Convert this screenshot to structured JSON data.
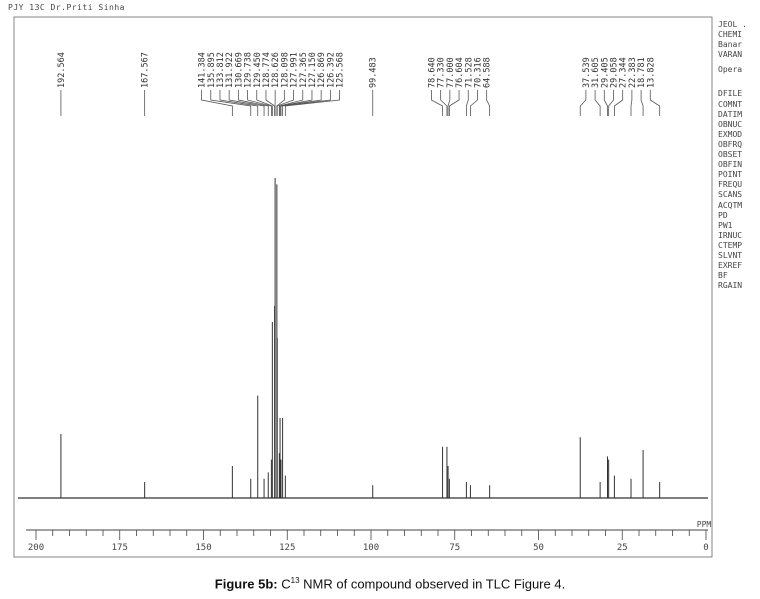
{
  "header": {
    "label": "PJY 13C Dr.Priti Sinha"
  },
  "params_top": [
    "JEOL .",
    "CHEMI",
    "Banar",
    "VARAN"
  ],
  "params_operator": "Opera",
  "params": [
    "DFILE",
    "COMNT",
    "DATIM",
    "OBNUC",
    "EXMOD",
    "OBFRQ",
    "OBSET",
    "OBFIN",
    "POINT",
    "FREQU",
    "SCANS",
    "ACQTM",
    "PD",
    "PW1",
    "IRNUC",
    "CTEMP",
    "SLVNT",
    "EXREF",
    "BF",
    "RGAIN"
  ],
  "caption": {
    "label": "Figure 5b:",
    "c": " C",
    "sup": "13",
    "text": " NMR of compound observed in TLC Figure 4."
  },
  "chart_data": {
    "type": "line",
    "title": "",
    "xlabel": "PPM",
    "xlim": [
      200,
      0
    ],
    "xticks": [
      200,
      175,
      150,
      125,
      100,
      75,
      50,
      25,
      0
    ],
    "peak_labels": [
      192.564,
      167.567,
      141.384,
      135.895,
      133.812,
      131.922,
      130.669,
      129.738,
      129.45,
      128.774,
      128.626,
      128.098,
      127.991,
      127.365,
      127.15,
      126.869,
      126.392,
      125.568,
      99.483,
      78.64,
      77.33,
      77.0,
      76.604,
      71.528,
      70.316,
      64.588,
      37.539,
      31.605,
      29.405,
      29.058,
      27.344,
      22.383,
      18.781,
      13.828
    ],
    "peaks": [
      {
        "ppm": 192.564,
        "intensity": 0.2
      },
      {
        "ppm": 167.567,
        "intensity": 0.05
      },
      {
        "ppm": 141.384,
        "intensity": 0.1
      },
      {
        "ppm": 135.895,
        "intensity": 0.06
      },
      {
        "ppm": 133.812,
        "intensity": 0.32
      },
      {
        "ppm": 131.922,
        "intensity": 0.06
      },
      {
        "ppm": 130.669,
        "intensity": 0.08
      },
      {
        "ppm": 129.738,
        "intensity": 0.12
      },
      {
        "ppm": 129.45,
        "intensity": 0.55
      },
      {
        "ppm": 128.774,
        "intensity": 0.6
      },
      {
        "ppm": 128.626,
        "intensity": 1.0
      },
      {
        "ppm": 128.098,
        "intensity": 0.98
      },
      {
        "ppm": 127.991,
        "intensity": 0.5
      },
      {
        "ppm": 127.365,
        "intensity": 0.14
      },
      {
        "ppm": 127.15,
        "intensity": 0.25
      },
      {
        "ppm": 126.869,
        "intensity": 0.12
      },
      {
        "ppm": 126.392,
        "intensity": 0.25
      },
      {
        "ppm": 125.568,
        "intensity": 0.07
      },
      {
        "ppm": 99.483,
        "intensity": 0.04
      },
      {
        "ppm": 78.64,
        "intensity": 0.16
      },
      {
        "ppm": 77.33,
        "intensity": 0.16
      },
      {
        "ppm": 77.0,
        "intensity": 0.1
      },
      {
        "ppm": 76.604,
        "intensity": 0.06
      },
      {
        "ppm": 71.528,
        "intensity": 0.05
      },
      {
        "ppm": 70.316,
        "intensity": 0.04
      },
      {
        "ppm": 64.588,
        "intensity": 0.04
      },
      {
        "ppm": 37.539,
        "intensity": 0.19
      },
      {
        "ppm": 31.605,
        "intensity": 0.05
      },
      {
        "ppm": 29.405,
        "intensity": 0.13
      },
      {
        "ppm": 29.058,
        "intensity": 0.12
      },
      {
        "ppm": 27.344,
        "intensity": 0.07
      },
      {
        "ppm": 22.383,
        "intensity": 0.06
      },
      {
        "ppm": 18.781,
        "intensity": 0.15
      },
      {
        "ppm": 13.828,
        "intensity": 0.05
      }
    ]
  }
}
